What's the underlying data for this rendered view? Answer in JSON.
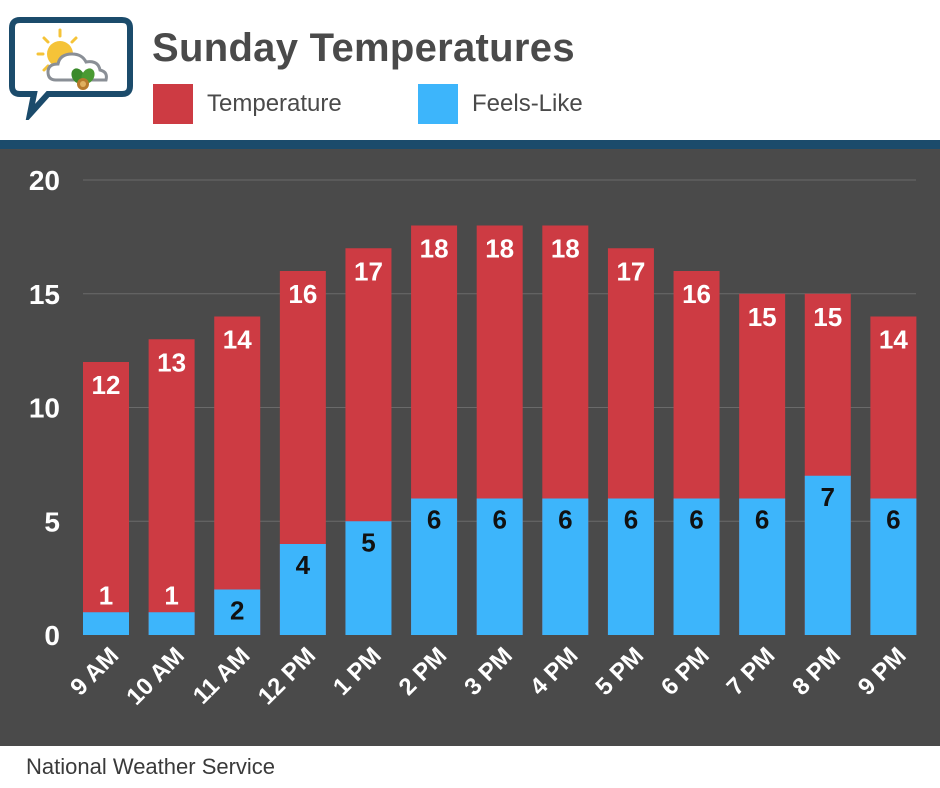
{
  "title": "Sunday Temperatures",
  "source": "National Weather Service",
  "legend": [
    {
      "label": "Temperature",
      "color": "#cd3b43"
    },
    {
      "label": "Feels-Like",
      "color": "#3db5fb"
    }
  ],
  "logo": {
    "icon": "weather-sun-cloud-leaf-icon"
  },
  "colors": {
    "header_bg": "#ffffff",
    "strip": "#1b4b6b",
    "panel": "#4a4a4a",
    "grid": "#6a6a6a",
    "text_light": "#ffffff",
    "text_dark": "#111111"
  },
  "chart_data": {
    "type": "bar",
    "categories": [
      "9 AM",
      "10 AM",
      "11 AM",
      "12 PM",
      "1 PM",
      "2 PM",
      "3 PM",
      "4 PM",
      "5 PM",
      "6 PM",
      "7 PM",
      "8 PM",
      "9 PM"
    ],
    "series": [
      {
        "name": "Temperature",
        "values": [
          12,
          13,
          14,
          16,
          17,
          18,
          18,
          18,
          17,
          16,
          15,
          15,
          14
        ],
        "color": "#cd3b43"
      },
      {
        "name": "Feels-Like",
        "values": [
          1,
          1,
          2,
          4,
          5,
          6,
          6,
          6,
          6,
          6,
          6,
          7,
          6
        ],
        "color": "#3db5fb"
      }
    ],
    "ylim": [
      0,
      20
    ],
    "yticks": [
      0,
      5,
      10,
      15,
      20
    ],
    "grid": true,
    "overlap": true,
    "title": "Sunday Temperatures"
  }
}
